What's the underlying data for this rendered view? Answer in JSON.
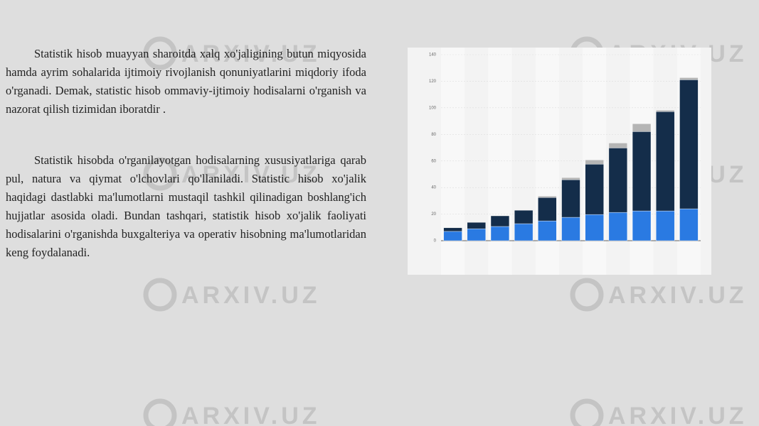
{
  "paragraphs": [
    "Statistik hisob muayyan sharoitda xalq xo'jaligining butun miqyosida hamda ayrim sohalarida ijtimoiy rivojlanish qonuniyatlarini miqdoriy ifoda o'rganadi. Demak, statistic hisob ommaviy-ijtimoiy hodisalarni o'rganish va nazorat qilish tizimidan iboratdir .",
    "Statistik hisobda o'rganilayotgan hodisalarning xususiyatlariga qarab pul, natura va qiymat o'lchovlari qo'llaniladi. Statistic hisob xo'jalik haqidagi dastlabki ma'lumotlarni mustaqil tashkil qilinadigan boshlang'ich hujjatlar asosida oladi. Bundan tashqari, statistik hisob xo'jalik faoliyati hodisalarini o'rganishda buxgalteriya va operativ hisobning ma'lumotlaridan keng foydalanadi."
  ],
  "watermark": "ARXIV.UZ",
  "chart_data": {
    "type": "bar",
    "stacked": true,
    "categories": [
      null,
      null,
      null,
      null,
      null,
      null,
      null,
      null,
      null,
      null,
      null
    ],
    "series": [
      {
        "color": "#2a7ae2",
        "values": [
          7,
          9,
          10.7,
          12.8,
          14.9,
          17.6,
          19.7,
          21.3,
          22.4,
          22.4,
          24
        ]
      },
      {
        "color": "#142d4a",
        "values": [
          2.7,
          4.8,
          8,
          10.1,
          17.6,
          28.3,
          37.9,
          48.5,
          59.7,
          74.7,
          97.1
        ]
      },
      {
        "color": "#b5b5b5",
        "values": [
          0,
          0,
          0,
          0,
          1,
          1.6,
          3.2,
          3.7,
          5.9,
          1.1,
          1.6
        ]
      }
    ],
    "ylim": [
      0,
      140
    ],
    "yticks": [
      0,
      20,
      40,
      60,
      80,
      100,
      120,
      140
    ],
    "grid": true
  }
}
